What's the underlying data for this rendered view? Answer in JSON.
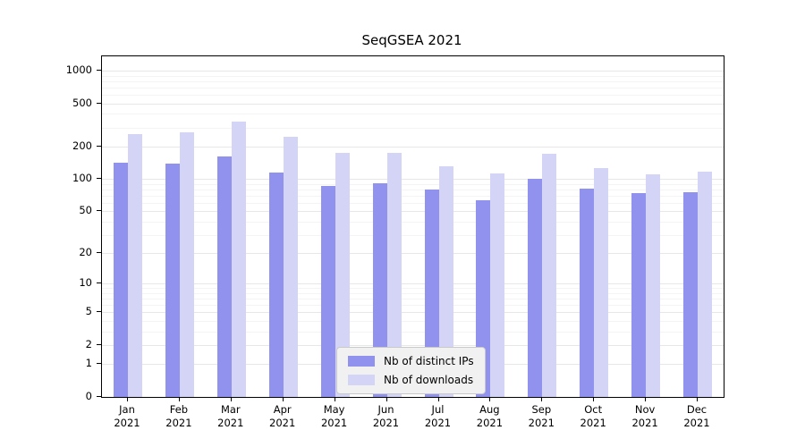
{
  "chart_data": {
    "type": "bar",
    "title": "SeqGSEA 2021",
    "year_label": "2021",
    "categories": [
      "Jan",
      "Feb",
      "Mar",
      "Apr",
      "May",
      "Jun",
      "Jul",
      "Aug",
      "Sep",
      "Oct",
      "Nov",
      "Dec"
    ],
    "series": [
      {
        "name": "Nb of distinct IPs",
        "color": "#9191ee",
        "values": [
          142,
          140,
          162,
          115,
          86,
          92,
          80,
          63,
          100,
          82,
          74,
          76
        ]
      },
      {
        "name": "Nb of downloads",
        "color": "#d4d4f7",
        "values": [
          260,
          268,
          340,
          245,
          175,
          175,
          132,
          112,
          172,
          126,
          110,
          116
        ]
      }
    ],
    "yticks": [
      0,
      1,
      2,
      5,
      10,
      20,
      50,
      100,
      200,
      500,
      1000
    ],
    "yticks_minor": [
      3,
      4,
      6,
      7,
      8,
      9,
      30,
      40,
      60,
      70,
      80,
      90,
      300,
      400,
      600,
      700,
      800,
      900
    ],
    "scale": "log10(1+x)",
    "ylim_top_value": 1000,
    "grid": true,
    "legend_position": "lower center",
    "axis_color": "#000000",
    "grid_color": "#e7e7e7",
    "background_color": "#ffffff"
  }
}
